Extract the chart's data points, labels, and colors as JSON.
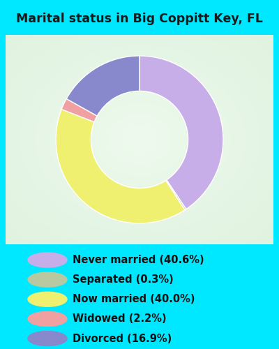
{
  "title": "Marital status in Big Coppitt Key, FL",
  "slices": [
    {
      "label": "Never married (40.6%)",
      "value": 40.6,
      "color": "#c8aee8"
    },
    {
      "label": "Separated (0.3%)",
      "value": 0.3,
      "color": "#b8c8a0"
    },
    {
      "label": "Now married (40.0%)",
      "value": 40.0,
      "color": "#f0f070"
    },
    {
      "label": "Widowed (2.2%)",
      "value": 2.2,
      "color": "#f0a0a0"
    },
    {
      "label": "Divorced (16.9%)",
      "value": 16.9,
      "color": "#8888cc"
    }
  ],
  "bg_color": "#00e8ff",
  "chart_bg_colors": [
    "#c8e8d0",
    "#d8f0d8",
    "#e8f8e0",
    "#f0f8f0",
    "#e0f0e8"
  ],
  "legend_bg": "#00e8ff",
  "title_color": "#1a1a1a",
  "title_fontsize": 12.5,
  "legend_fontsize": 10.5,
  "donut_width": 0.42,
  "startangle": 90
}
